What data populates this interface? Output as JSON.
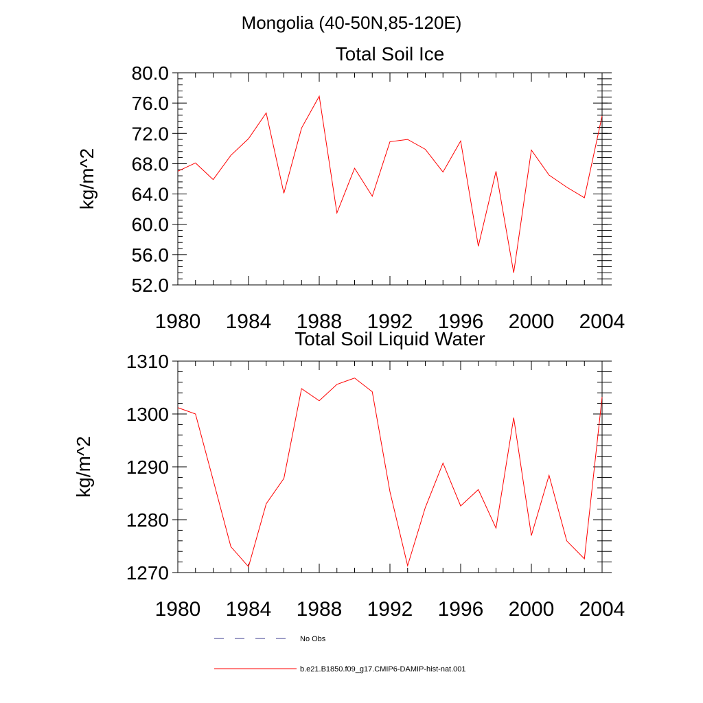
{
  "figure": {
    "title": "Mongolia (40-50N,85-120E)"
  },
  "legend": {
    "placement": "bottom",
    "entries": [
      {
        "label": "No Obs",
        "color": "#3b3b8f",
        "style": "dashed"
      },
      {
        "label": "b.e21.B1850.f09_g17.CMIP6-DAMIP-hist-nat.001",
        "color": "#ff0000",
        "style": "solid"
      }
    ]
  },
  "chart_data": [
    {
      "type": "line",
      "title": "Total Soil Ice",
      "xlabel": "",
      "ylabel": "kg/m^2",
      "xlim": [
        1980,
        2004
      ],
      "ylim": [
        52.0,
        80.0
      ],
      "xticks": [
        1980,
        1984,
        1988,
        1992,
        1996,
        2000,
        2004
      ],
      "yticks": [
        "52.0",
        "56.0",
        "60.0",
        "64.0",
        "68.0",
        "72.0",
        "76.0",
        "80.0"
      ],
      "grid": false,
      "x": [
        1980,
        1981,
        1982,
        1983,
        1984,
        1985,
        1986,
        1987,
        1988,
        1989,
        1990,
        1991,
        1992,
        1993,
        1994,
        1995,
        1996,
        1997,
        1998,
        1999,
        2000,
        2001,
        2002,
        2003,
        2004
      ],
      "series": [
        {
          "name": "b.e21.B1850.f09_g17.CMIP6-DAMIP-hist-nat.001",
          "color": "#ff0000",
          "values": [
            67.0,
            68.1,
            65.9,
            69.1,
            71.3,
            74.7,
            64.1,
            72.7,
            76.9,
            61.5,
            67.4,
            63.7,
            70.9,
            71.2,
            69.9,
            66.9,
            71.0,
            57.1,
            67.0,
            53.6,
            69.8,
            66.5,
            64.9,
            63.5,
            74.3
          ]
        }
      ]
    },
    {
      "type": "line",
      "title": "Total Soil Liquid Water",
      "xlabel": "",
      "ylabel": "kg/m^2",
      "xlim": [
        1980,
        2004
      ],
      "ylim": [
        1270,
        1310
      ],
      "xticks": [
        1980,
        1984,
        1988,
        1992,
        1996,
        2000,
        2004
      ],
      "yticks": [
        "1270",
        "1280",
        "1290",
        "1300",
        "1310"
      ],
      "grid": false,
      "x": [
        1980,
        1981,
        1982,
        1983,
        1984,
        1985,
        1986,
        1987,
        1988,
        1989,
        1990,
        1991,
        1992,
        1993,
        1994,
        1995,
        1996,
        1997,
        1998,
        1999,
        2000,
        2001,
        2002,
        2003,
        2004
      ],
      "series": [
        {
          "name": "b.e21.B1850.f09_g17.CMIP6-DAMIP-hist-nat.001",
          "color": "#ff0000",
          "values": [
            1301.2,
            1300.0,
            1287.5,
            1274.9,
            1271.1,
            1283.0,
            1287.8,
            1304.8,
            1302.5,
            1305.6,
            1306.8,
            1304.2,
            1285.3,
            1271.3,
            1282.3,
            1290.7,
            1282.6,
            1285.7,
            1278.4,
            1299.3,
            1277.0,
            1288.4,
            1276.0,
            1272.6,
            1303.2
          ]
        }
      ]
    }
  ]
}
